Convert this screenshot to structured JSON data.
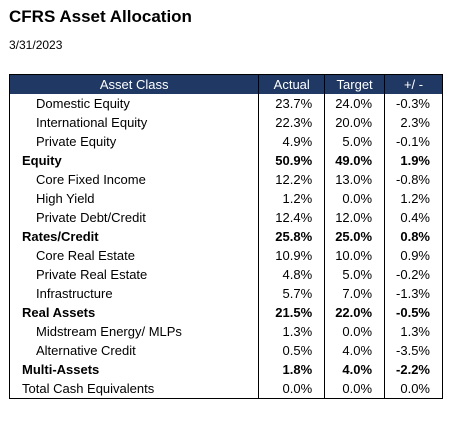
{
  "header": {
    "title": "CFRS Asset Allocation",
    "date": "3/31/2023"
  },
  "table": {
    "columns": [
      "Asset Class",
      "Actual",
      "Target",
      "+/ -"
    ],
    "groups": [
      {
        "items": [
          [
            "Domestic Equity",
            "23.7%",
            "24.0%",
            "-0.3%"
          ],
          [
            "International Equity",
            "22.3%",
            "20.0%",
            "2.3%"
          ],
          [
            "Private Equity",
            "4.9%",
            "5.0%",
            "-0.1%"
          ]
        ],
        "total": [
          "Equity",
          "50.9%",
          "49.0%",
          "1.9%"
        ]
      },
      {
        "items": [
          [
            "Core Fixed Income",
            "12.2%",
            "13.0%",
            "-0.8%"
          ],
          [
            "High Yield",
            "1.2%",
            "0.0%",
            "1.2%"
          ],
          [
            "Private Debt/Credit",
            "12.4%",
            "12.0%",
            "0.4%"
          ]
        ],
        "total": [
          "Rates/Credit",
          "25.8%",
          "25.0%",
          "0.8%"
        ]
      },
      {
        "items": [
          [
            "Core Real Estate",
            "10.9%",
            "10.0%",
            "0.9%"
          ],
          [
            "Private Real Estate",
            "4.8%",
            "5.0%",
            "-0.2%"
          ],
          [
            "Infrastructure",
            "5.7%",
            "7.0%",
            "-1.3%"
          ]
        ],
        "total": [
          "Real Assets",
          "21.5%",
          "22.0%",
          "-0.5%"
        ]
      },
      {
        "items": [
          [
            "Midstream Energy/ MLPs",
            "1.3%",
            "0.0%",
            "1.3%"
          ],
          [
            "Alternative Credit",
            "0.5%",
            "4.0%",
            "-3.5%"
          ]
        ],
        "total": [
          "Multi-Assets",
          "1.8%",
          "4.0%",
          "-2.2%"
        ]
      }
    ],
    "last_row": [
      "Total Cash Equivalents",
      "0.0%",
      "0.0%",
      "0.0%"
    ]
  }
}
